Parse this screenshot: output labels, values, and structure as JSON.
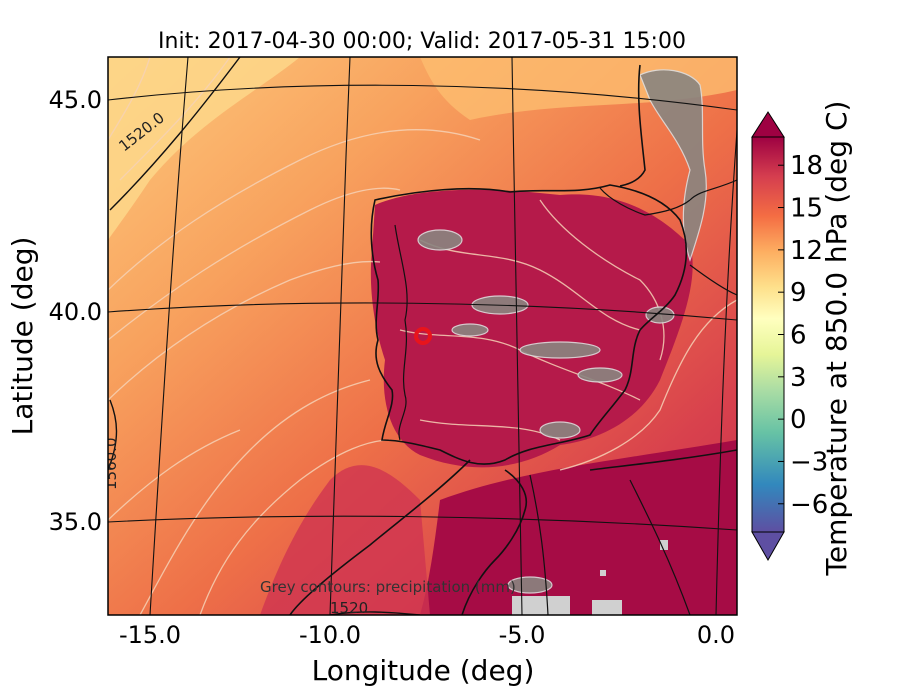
{
  "title": "Init: 2017-04-30 00:00; Valid: 2017-05-31 15:00",
  "map": {
    "xlabel": "Longitude (deg)",
    "ylabel": "Latitude (deg)",
    "x_ticks": [
      "-15.0",
      "-10.0",
      "-5.0",
      "0.0"
    ],
    "y_ticks": [
      "45.0",
      "40.0",
      "35.0"
    ],
    "lon_range": [
      -16,
      0
    ],
    "lat_range": [
      33,
      46
    ],
    "note": "Grey contours: precipitation (mm)",
    "contour_labels": [
      "1520.0",
      "1560.0",
      "1520"
    ],
    "marker": {
      "lon": -7.6,
      "lat": 39.3,
      "color": "#e8141c"
    }
  },
  "colorbar": {
    "label": "Temperature at 850.0 hPa (deg C)",
    "ticks": [
      "18",
      "15",
      "12",
      "9",
      "6",
      "3",
      "0",
      "−3",
      "−6"
    ],
    "tick_values": [
      18,
      15,
      12,
      9,
      6,
      3,
      0,
      -3,
      -6
    ],
    "range": [
      -8,
      20
    ],
    "palette": [
      "#5e4fa2",
      "#3288bd",
      "#66c2a5",
      "#abdda4",
      "#e6f598",
      "#ffffbf",
      "#fee08b",
      "#fdae61",
      "#f46d43",
      "#d53e4f",
      "#9e0142"
    ]
  }
}
